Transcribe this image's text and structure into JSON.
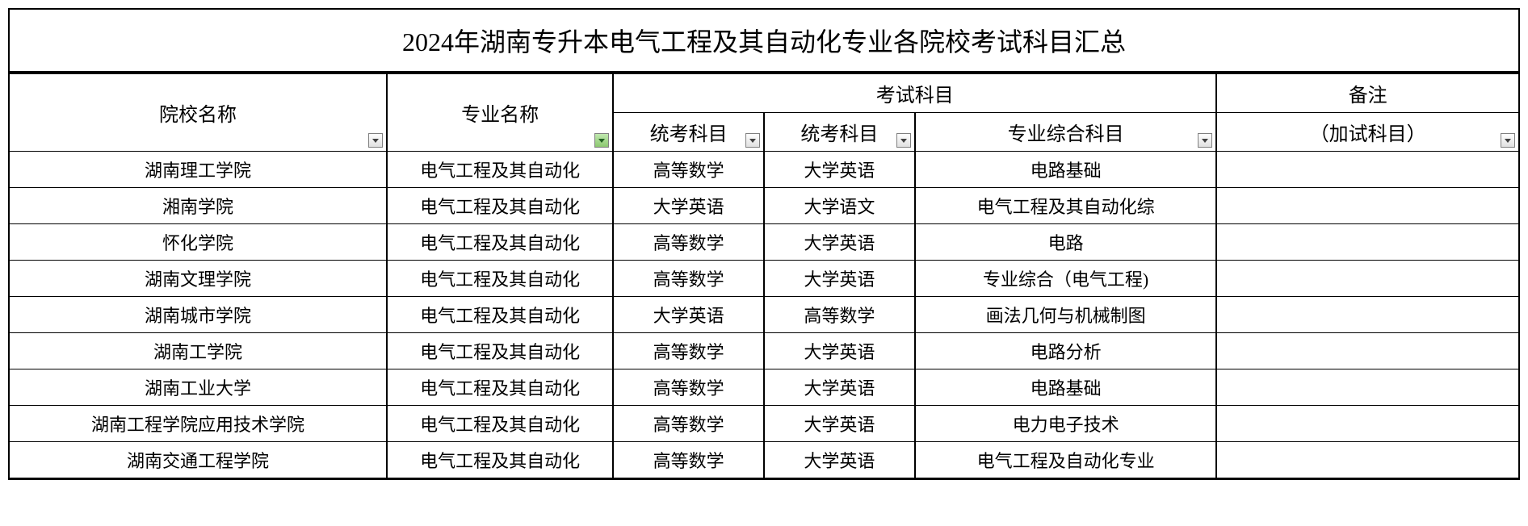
{
  "title": "2024年湖南专升本电气工程及其自动化专业各院校考试科目汇总",
  "headers": {
    "school": "院校名称",
    "major": "专业名称",
    "exam_group": "考试科目",
    "sub1": "统考科目",
    "sub2": "统考科目",
    "sub3": "专业综合科目",
    "note": "备注",
    "note_sub": "（加试科目）"
  },
  "rows": [
    {
      "school": "湖南理工学院",
      "major": "电气工程及其自动化",
      "sub1": "高等数学",
      "sub2": "大学英语",
      "sub3": "电路基础",
      "note": ""
    },
    {
      "school": "湘南学院",
      "major": "电气工程及其自动化",
      "sub1": "大学英语",
      "sub2": "大学语文",
      "sub3": "电气工程及其自动化综",
      "note": ""
    },
    {
      "school": "怀化学院",
      "major": "电气工程及其自动化",
      "sub1": "高等数学",
      "sub2": "大学英语",
      "sub3": "电路",
      "note": ""
    },
    {
      "school": "湖南文理学院",
      "major": "电气工程及其自动化",
      "sub1": "高等数学",
      "sub2": "大学英语",
      "sub3": "专业综合（电气工程)",
      "note": ""
    },
    {
      "school": "湖南城市学院",
      "major": "电气工程及其自动化",
      "sub1": "大学英语",
      "sub2": "高等数学",
      "sub3": "画法几何与机械制图",
      "note": ""
    },
    {
      "school": "湖南工学院",
      "major": "电气工程及其自动化",
      "sub1": "高等数学",
      "sub2": "大学英语",
      "sub3": "电路分析",
      "note": ""
    },
    {
      "school": "湖南工业大学",
      "major": "电气工程及其自动化",
      "sub1": "高等数学",
      "sub2": "大学英语",
      "sub3": "电路基础",
      "note": ""
    },
    {
      "school": "湖南工程学院应用技术学院",
      "major": "电气工程及其自动化",
      "sub1": "高等数学",
      "sub2": "大学英语",
      "sub3": "电力电子技术",
      "note": ""
    },
    {
      "school": "湖南交通工程学院",
      "major": "电气工程及其自动化",
      "sub1": "高等数学",
      "sub2": "大学英语",
      "sub3": "电气工程及自动化专业",
      "note": ""
    }
  ],
  "colors": {
    "border": "#000000",
    "background": "#ffffff",
    "filter_green": "#7bb661"
  }
}
